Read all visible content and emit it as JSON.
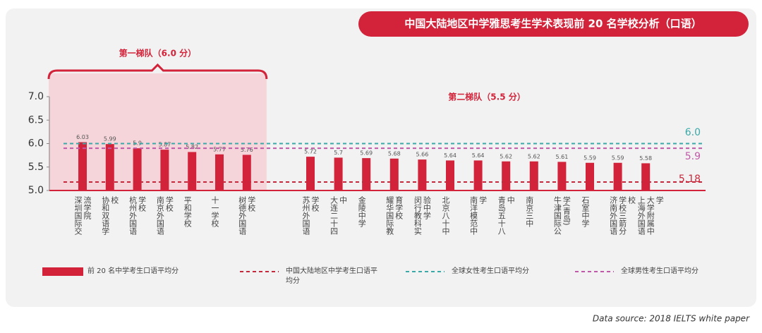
{
  "chart_data": {
    "type": "bar",
    "title": "中国大陆地区中学雅思考生学术表现前 20 名学校分析（口语）",
    "groups": [
      {
        "label": "第一梯队（6.0 分）",
        "count": 7
      },
      {
        "label": "第二梯队（5.5 分）",
        "count": 13
      }
    ],
    "categories": [
      "深圳国际交流学院",
      "协和双语学校",
      "杭州外国语学校",
      "南京外国语学校",
      "平和学校",
      "十一学校",
      "树德外国语学校",
      "苏州外国语学校",
      "大连二十四中",
      "金陵中学",
      "耀华国际教育学校",
      "闵行教科实验中学",
      "北京八十中",
      "南洋模范中学",
      "青岛五十八中",
      "南京三中",
      "牛津国际公学(青岛)",
      "石室中学",
      "济南外国语学校三箭分校",
      "上海外国语大学附属中学"
    ],
    "series": [
      {
        "name": "前 20 名中学考生口语平均分",
        "color": "#d2233a",
        "values": [
          6.03,
          5.99,
          5.9,
          5.87,
          5.82,
          5.77,
          5.76,
          5.72,
          5.7,
          5.69,
          5.68,
          5.66,
          5.64,
          5.64,
          5.62,
          5.62,
          5.61,
          5.59,
          5.59,
          5.58
        ]
      }
    ],
    "reference_lines": [
      {
        "name": "中国大陆地区中学考生口语平均分",
        "value": 5.18,
        "color": "#c8283c"
      },
      {
        "name": "全球女性考生口语平均分",
        "value": {
          "value": 6,
          "label": "6.0"
        },
        "color": "#3aa9a8"
      },
      {
        "name": "全球男性考生口语平均分",
        "value": 5.9,
        "color": "#c05aa8"
      }
    ],
    "ylim": [
      5,
      7
    ],
    "yticks": [
      {
        "value": 5,
        "label": "5.0"
      },
      {
        "value": 5.5,
        "label": "5.5"
      },
      {
        "value": 6,
        "label": "6.0"
      },
      {
        "value": 6.5,
        "label": "6.5"
      },
      {
        "value": 7,
        "label": "7.0"
      }
    ],
    "source": "Data source: 2018 IELTS white paper"
  }
}
